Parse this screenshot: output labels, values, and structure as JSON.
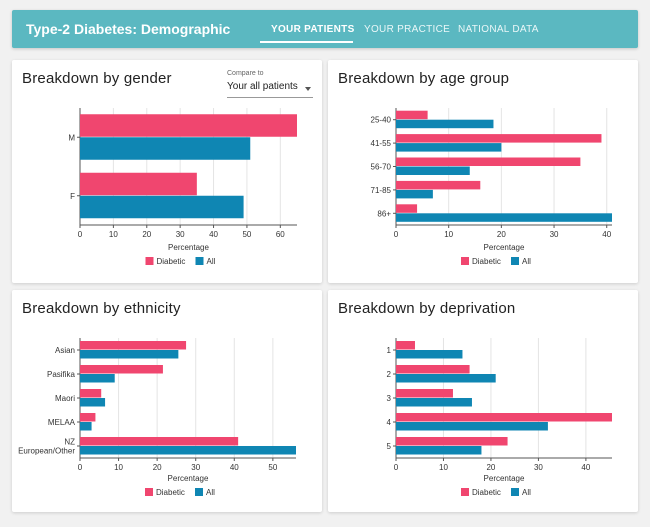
{
  "header": {
    "title": "Type-2 Diabetes: Demographic",
    "tabs": [
      {
        "label": "YOUR PATIENTS",
        "active": true
      },
      {
        "label": "YOUR PRACTICE",
        "active": false
      },
      {
        "label": "NATIONAL DATA",
        "active": false
      }
    ]
  },
  "compare": {
    "label": "Compare to",
    "value": "Your all patients"
  },
  "colors": {
    "diabetic": "#f0466f",
    "all": "#0f86b3",
    "grid": "#e4e4e4",
    "axis": "#555555"
  },
  "chart_data": [
    {
      "type": "bar",
      "orientation": "horizontal",
      "title": "Breakdown by gender",
      "categories": [
        "M",
        "F"
      ],
      "series": [
        {
          "name": "Diabetic",
          "values": [
            65,
            35
          ]
        },
        {
          "name": "All",
          "values": [
            51,
            49
          ]
        }
      ],
      "xlabel": "Percentage",
      "xlim": [
        0,
        65
      ],
      "xticks": [
        0,
        10,
        20,
        30,
        40,
        50,
        60
      ],
      "legend": "bottom",
      "grid": true
    },
    {
      "type": "bar",
      "orientation": "horizontal",
      "title": "Breakdown by age group",
      "categories": [
        "25-40",
        "41-55",
        "56-70",
        "71-85",
        "86+"
      ],
      "series": [
        {
          "name": "Diabetic",
          "values": [
            6,
            39,
            35,
            16,
            4
          ]
        },
        {
          "name": "All",
          "values": [
            18.5,
            20,
            14,
            7,
            41
          ]
        }
      ],
      "xlabel": "Percentage",
      "xlim": [
        0,
        41
      ],
      "xticks": [
        0,
        10,
        20,
        30,
        40
      ],
      "legend": "bottom",
      "grid": true
    },
    {
      "type": "bar",
      "orientation": "horizontal",
      "title": "Breakdown by ethnicity",
      "categories": [
        "Asian",
        "Pasifika",
        "Maori",
        "MELAA",
        "NZ European/Other"
      ],
      "category_lines": [
        [
          "Asian"
        ],
        [
          "Pasifika"
        ],
        [
          "Maori"
        ],
        [
          "MELAA"
        ],
        [
          "NZ",
          "European/Other"
        ]
      ],
      "series": [
        {
          "name": "Diabetic",
          "values": [
            27.5,
            21.5,
            5.5,
            4,
            41
          ]
        },
        {
          "name": "All",
          "values": [
            25.5,
            9,
            6.5,
            3,
            56
          ]
        }
      ],
      "xlabel": "Percentage",
      "xlim": [
        0,
        56
      ],
      "xticks": [
        0,
        10,
        20,
        30,
        40,
        50
      ],
      "legend": "bottom",
      "grid": true
    },
    {
      "type": "bar",
      "orientation": "horizontal",
      "title": "Breakdown by deprivation",
      "categories": [
        "1",
        "2",
        "3",
        "4",
        "5"
      ],
      "series": [
        {
          "name": "Diabetic",
          "values": [
            4,
            15.5,
            12,
            45.5,
            23.5
          ]
        },
        {
          "name": "All",
          "values": [
            14,
            21,
            16,
            32,
            18
          ]
        }
      ],
      "xlabel": "Percentage",
      "xlim": [
        0,
        45.5
      ],
      "xticks": [
        0,
        10,
        20,
        30,
        40
      ],
      "legend": "bottom",
      "grid": true
    }
  ]
}
